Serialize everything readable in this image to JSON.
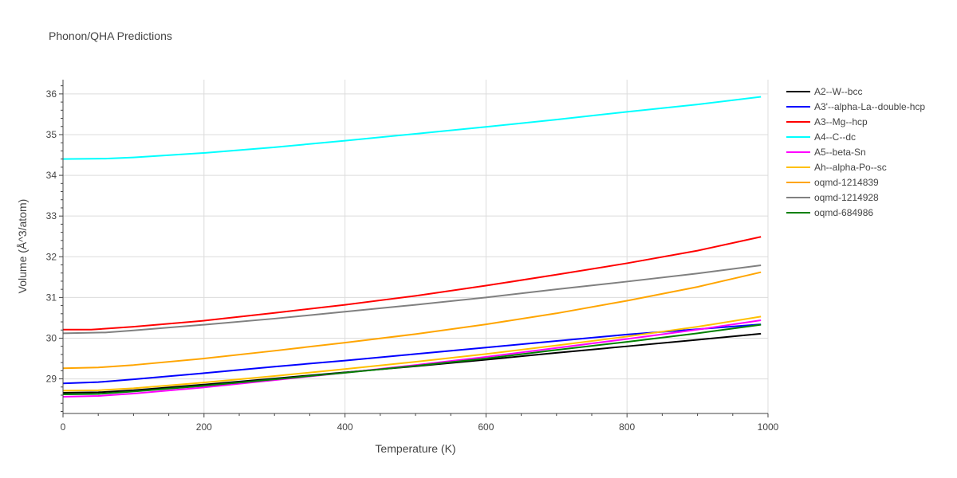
{
  "chart_data": {
    "type": "line",
    "title": "Phonon/QHA Predictions",
    "xlabel": "Temperature (K)",
    "ylabel": "Volume (Å^3/atom)",
    "xlim": [
      0,
      1000
    ],
    "ylim": [
      28.15,
      36.35
    ],
    "xticks": [
      0,
      200,
      400,
      600,
      800,
      1000
    ],
    "yticks": [
      29,
      30,
      31,
      32,
      33,
      34,
      35,
      36
    ],
    "grid": true,
    "legend_position": "right",
    "series": [
      {
        "name": "A2--W--bcc",
        "color": "#000000",
        "x": [
          0,
          50,
          100,
          200,
          300,
          400,
          500,
          600,
          700,
          800,
          900,
          990
        ],
        "y": [
          28.66,
          28.67,
          28.72,
          28.86,
          29.01,
          29.16,
          29.31,
          29.47,
          29.64,
          29.8,
          29.96,
          30.11
        ]
      },
      {
        "name": "A3'--alpha-La--double-hcp",
        "color": "#0000ff",
        "x": [
          0,
          50,
          100,
          200,
          300,
          400,
          500,
          600,
          700,
          800,
          900,
          990
        ],
        "y": [
          28.89,
          28.92,
          28.99,
          29.14,
          29.3,
          29.45,
          29.61,
          29.77,
          29.93,
          30.09,
          30.22,
          30.34
        ]
      },
      {
        "name": "A3--Mg--hcp",
        "color": "#ff0000",
        "x": [
          0,
          40,
          100,
          200,
          300,
          400,
          500,
          600,
          700,
          800,
          900,
          990
        ],
        "y": [
          30.21,
          30.21,
          30.28,
          30.43,
          30.62,
          30.82,
          31.04,
          31.29,
          31.56,
          31.84,
          32.15,
          32.49
        ]
      },
      {
        "name": "A4--C--dc",
        "color": "#00ffff",
        "x": [
          0,
          60,
          100,
          200,
          300,
          400,
          500,
          600,
          700,
          800,
          900,
          990
        ],
        "y": [
          34.4,
          34.41,
          34.44,
          34.55,
          34.69,
          34.85,
          35.02,
          35.19,
          35.37,
          35.56,
          35.74,
          35.93
        ]
      },
      {
        "name": "A5--beta-Sn",
        "color": "#ff00ff",
        "x": [
          0,
          50,
          100,
          200,
          300,
          400,
          500,
          600,
          700,
          800,
          900,
          990
        ],
        "y": [
          28.56,
          28.58,
          28.64,
          28.79,
          28.97,
          29.15,
          29.34,
          29.54,
          29.76,
          29.98,
          30.21,
          30.44
        ]
      },
      {
        "name": "Ah--alpha-Po--sc",
        "color": "#ffc000",
        "x": [
          0,
          50,
          100,
          200,
          300,
          400,
          500,
          600,
          700,
          800,
          900,
          990
        ],
        "y": [
          28.71,
          28.72,
          28.77,
          28.91,
          29.07,
          29.24,
          29.42,
          29.61,
          29.82,
          30.04,
          30.28,
          30.53
        ]
      },
      {
        "name": "oqmd-1214839",
        "color": "#ffa500",
        "x": [
          0,
          50,
          100,
          200,
          300,
          400,
          500,
          600,
          700,
          800,
          900,
          990
        ],
        "y": [
          29.26,
          29.28,
          29.34,
          29.5,
          29.69,
          29.89,
          30.1,
          30.34,
          30.61,
          30.92,
          31.26,
          31.62
        ]
      },
      {
        "name": "oqmd-1214928",
        "color": "#808080",
        "x": [
          0,
          60,
          100,
          200,
          300,
          400,
          500,
          600,
          700,
          800,
          900,
          990
        ],
        "y": [
          30.12,
          30.14,
          30.19,
          30.33,
          30.48,
          30.65,
          30.82,
          31.0,
          31.2,
          31.39,
          31.59,
          31.79
        ]
      },
      {
        "name": "oqmd-684986",
        "color": "#008000",
        "x": [
          0,
          50,
          100,
          200,
          300,
          400,
          500,
          600,
          700,
          800,
          900,
          990
        ],
        "y": [
          28.62,
          28.63,
          28.69,
          28.83,
          28.99,
          29.15,
          29.32,
          29.5,
          29.71,
          29.91,
          30.12,
          30.33
        ]
      }
    ]
  }
}
